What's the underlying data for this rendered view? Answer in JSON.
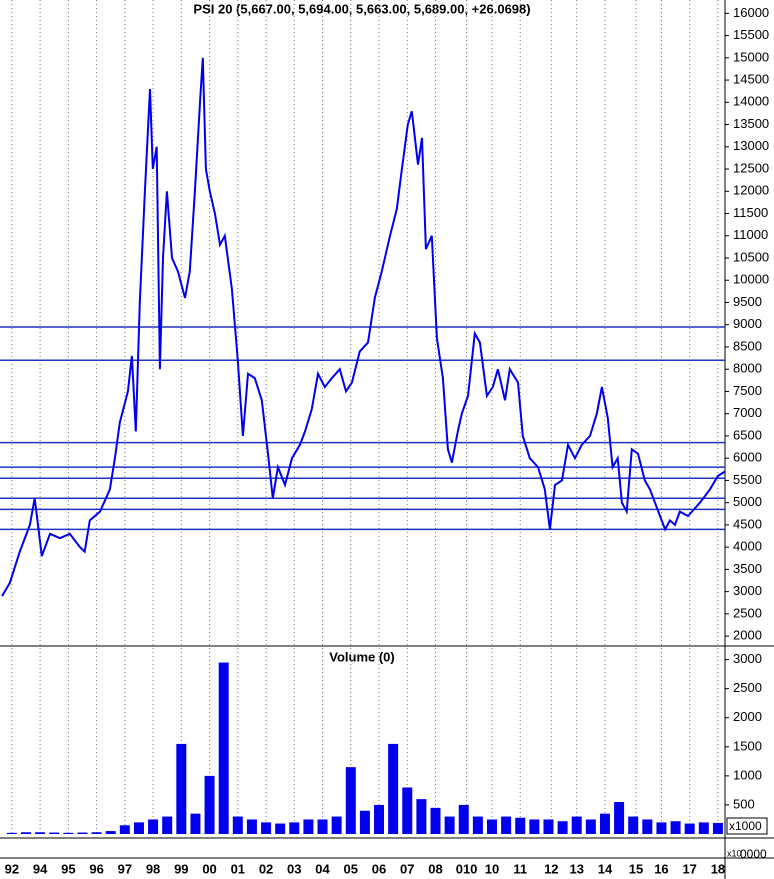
{
  "chart_data": [
    {
      "type": "line",
      "title": "PSI 20 (5,667.00, 5,694.00, 5,663.00, 5,689.00, +26.0698)",
      "color": "#0000ee",
      "x": [
        -0.35,
        -0.07,
        0.28,
        0.64,
        0.81,
        1.06,
        1.35,
        1.7,
        2.05,
        2.41,
        2.58,
        2.76,
        3.12,
        3.47,
        3.65,
        3.82,
        4.11,
        4.25,
        4.39,
        4.53,
        4.71,
        4.89,
        4.99,
        5.13,
        5.24,
        5.35,
        5.49,
        5.67,
        5.88,
        6.13,
        6.3,
        6.48,
        6.66,
        6.76,
        6.87,
        7.01,
        7.19,
        7.37,
        7.54,
        7.79,
        8.0,
        8.18,
        8.36,
        8.6,
        8.85,
        9.07,
        9.24,
        9.42,
        9.67,
        9.92,
        10.2,
        10.38,
        10.62,
        10.84,
        11.08,
        11.33,
        11.61,
        11.83,
        12.04,
        12.32,
        12.61,
        12.85,
        13.1,
        13.39,
        13.63,
        13.81,
        14.02,
        14.16,
        14.38,
        14.52,
        14.66,
        14.87,
        15.05,
        15.26,
        15.44,
        15.58,
        15.79,
        15.93,
        16.15,
        16.39,
        16.57,
        16.82,
        17.03,
        17.21,
        17.46,
        17.63,
        17.92,
        18.09,
        18.34,
        18.63,
        18.87,
        19.05,
        19.23,
        19.48,
        19.69,
        19.94,
        20.18,
        20.47,
        20.71,
        20.89,
        21.1,
        21.27,
        21.45,
        21.6,
        21.77,
        21.95,
        22.17,
        22.41,
        22.59,
        22.77,
        22.95,
        23.13,
        23.3,
        23.48,
        23.65,
        23.94,
        24.36,
        24.72,
        25.0,
        25.25
      ],
      "values": [
        2900,
        3200,
        3900,
        4500,
        5100,
        3800,
        4300,
        4200,
        4300,
        4000,
        3900,
        4600,
        4800,
        5300,
        6000,
        6800,
        7500,
        8300,
        6600,
        9500,
        12000,
        14300,
        12500,
        13000,
        8000,
        10500,
        12000,
        10500,
        10200,
        9600,
        10200,
        12000,
        14000,
        15000,
        12500,
        12000,
        11500,
        10800,
        11000,
        9800,
        8200,
        6500,
        7900,
        7800,
        7300,
        6100,
        5100,
        5800,
        5400,
        6000,
        6300,
        6600,
        7100,
        7900,
        7600,
        7800,
        8000,
        7500,
        7700,
        8400,
        8600,
        9600,
        10200,
        11000,
        11600,
        12500,
        13500,
        13800,
        12600,
        13200,
        10700,
        11000,
        8700,
        7800,
        6200,
        5900,
        6600,
        7000,
        7400,
        8800,
        8600,
        7400,
        7600,
        8000,
        7300,
        8000,
        7700,
        6500,
        6000,
        5800,
        5300,
        4400,
        5400,
        5500,
        6300,
        6000,
        6300,
        6500,
        7000,
        7600,
        6900,
        5800,
        6000,
        5000,
        4800,
        6200,
        6100,
        5500,
        5300,
        5000,
        4700,
        4400,
        4600,
        4500,
        4800,
        4700,
        5000,
        5300,
        5600,
        5700
      ],
      "xlim": [
        -0.42,
        25.25
      ],
      "ylim": [
        1800,
        16300
      ],
      "yticks": [
        2000,
        2500,
        3000,
        3500,
        4000,
        4500,
        5000,
        5500,
        6000,
        6500,
        7000,
        7500,
        8000,
        8500,
        9000,
        9500,
        10000,
        10500,
        11000,
        11500,
        12000,
        12500,
        13000,
        13500,
        14000,
        14500,
        15000,
        15500,
        16000
      ],
      "hlines": [
        8950,
        8200,
        6350,
        5800,
        5550,
        5100,
        4850,
        4400
      ],
      "hline_color": "#1c34c8",
      "grid": true
    },
    {
      "type": "bar",
      "title": "Volume (0)",
      "color": "#0000ee",
      "x": [
        0,
        0.5,
        1,
        1.5,
        2,
        2.5,
        3,
        3.5,
        4,
        4.5,
        5,
        5.5,
        6,
        6.5,
        7,
        7.5,
        8,
        8.5,
        9,
        9.5,
        10,
        10.5,
        11,
        11.5,
        12,
        12.5,
        13,
        13.5,
        14,
        14.5,
        15,
        15.5,
        16,
        16.5,
        17,
        17.5,
        18,
        18.5,
        19,
        19.5,
        20,
        20.5,
        21,
        21.5,
        22,
        22.5,
        23,
        23.5,
        24,
        24.5,
        25
      ],
      "values": [
        20,
        30,
        30,
        25,
        20,
        25,
        30,
        50,
        150,
        200,
        250,
        300,
        1550,
        350,
        1000,
        2950,
        300,
        250,
        200,
        180,
        200,
        250,
        250,
        300,
        1150,
        400,
        500,
        1550,
        800,
        600,
        450,
        300,
        500,
        300,
        250,
        300,
        280,
        250,
        250,
        220,
        300,
        250,
        350,
        550,
        300,
        250,
        200,
        220,
        180,
        200,
        190
      ],
      "xlim": [
        -0.42,
        25.25
      ],
      "ylim": [
        0,
        3200
      ],
      "yticks": [
        500,
        1000,
        1500,
        2000,
        2500,
        3000
      ],
      "xticks": [
        {
          "value": 0,
          "label": "92"
        },
        {
          "value": 1,
          "label": "94"
        },
        {
          "value": 2,
          "label": "95"
        },
        {
          "value": 3,
          "label": "96"
        },
        {
          "value": 4,
          "label": "97"
        },
        {
          "value": 5,
          "label": "98"
        },
        {
          "value": 6,
          "label": "99"
        },
        {
          "value": 7,
          "label": "00"
        },
        {
          "value": 8,
          "label": "01"
        },
        {
          "value": 9,
          "label": "02"
        },
        {
          "value": 10,
          "label": "03"
        },
        {
          "value": 11,
          "label": "04"
        },
        {
          "value": 12,
          "label": "05"
        },
        {
          "value": 13,
          "label": "06"
        },
        {
          "value": 14,
          "label": "07"
        },
        {
          "value": 15,
          "label": "08"
        },
        {
          "value": 16.1,
          "label": "010"
        },
        {
          "value": 17,
          "label": "10"
        },
        {
          "value": 18,
          "label": "11"
        },
        {
          "value": 19.1,
          "label": "12"
        },
        {
          "value": 20,
          "label": "13"
        },
        {
          "value": 21,
          "label": "14"
        },
        {
          "value": 22.1,
          "label": "15"
        },
        {
          "value": 23,
          "label": "16"
        },
        {
          "value": 24,
          "label": "17"
        },
        {
          "value": 25,
          "label": "18"
        }
      ],
      "scale_label": "x1000",
      "corner_labels": [
        "x10",
        "0000"
      ]
    }
  ]
}
